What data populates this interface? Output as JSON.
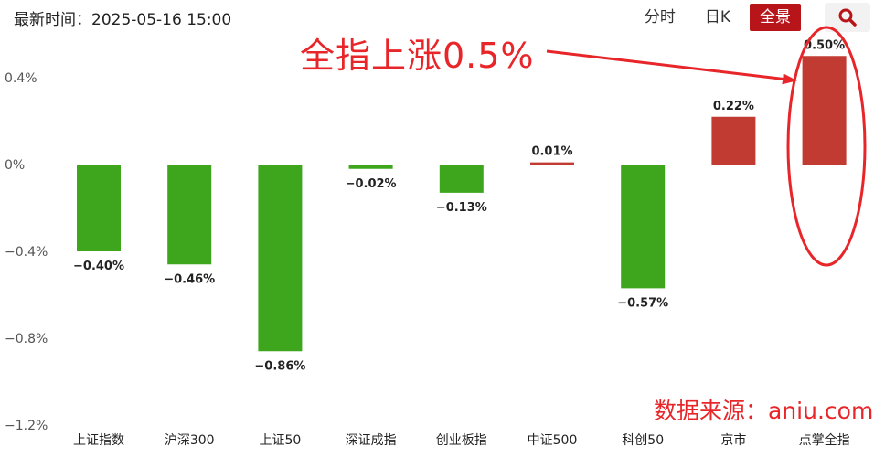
{
  "header": {
    "timestamp": "最新时间：2025-05-16 15:00",
    "tabs": [
      {
        "label": "分时",
        "active": false
      },
      {
        "label": "日K",
        "active": false
      },
      {
        "label": "全景",
        "active": true
      }
    ],
    "search_icon": "search-icon"
  },
  "annotation": {
    "text": "全指上涨0.5%",
    "color": "#e8262a"
  },
  "source": "数据来源：aniu.com",
  "colors": {
    "up": "#c23b32",
    "down": "#3ea61d",
    "accent": "#b8151b"
  },
  "chart_data": {
    "type": "bar",
    "categories": [
      "上证指数",
      "沪深300",
      "上证50",
      "深证成指",
      "创业板指",
      "中证500",
      "科创50",
      "京市",
      "点掌全指"
    ],
    "values": [
      -0.4,
      -0.46,
      -0.86,
      -0.02,
      -0.13,
      0.01,
      -0.57,
      0.22,
      0.5
    ],
    "data_labels": [
      "−0.40%",
      "−0.46%",
      "−0.86%",
      "−0.02%",
      "−0.13%",
      "0.01%",
      "−0.57%",
      "0.22%",
      "0.50%"
    ],
    "y_ticks": [
      0.4,
      0,
      -0.4,
      -0.8,
      -1.2
    ],
    "y_tick_labels": [
      "0.4%",
      "0%",
      "−0.4%",
      "−0.8%",
      "−1.2%"
    ],
    "ylim": [
      -1.2,
      0.4
    ],
    "grid": false,
    "title": "",
    "xlabel": "",
    "ylabel": ""
  }
}
